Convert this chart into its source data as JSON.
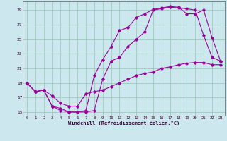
{
  "xlabel": "Windchill (Refroidissement éolien,°C)",
  "xlim": [
    -0.5,
    23.5
  ],
  "ylim": [
    14.5,
    30.2
  ],
  "yticks": [
    15,
    17,
    19,
    21,
    23,
    25,
    27,
    29
  ],
  "xticks": [
    0,
    1,
    2,
    3,
    4,
    5,
    6,
    7,
    8,
    9,
    10,
    11,
    12,
    13,
    14,
    15,
    16,
    17,
    18,
    19,
    20,
    21,
    22,
    23
  ],
  "bg_color": "#cce8ee",
  "grid_color": "#99ccbb",
  "line_color": "#990099",
  "line1_x": [
    0,
    1,
    2,
    3,
    4,
    5,
    6,
    7,
    8,
    9,
    10,
    11,
    12,
    13,
    14,
    15,
    16,
    17,
    18,
    19,
    20,
    21,
    22,
    23
  ],
  "line1_y": [
    19,
    17.8,
    18,
    15.8,
    15.2,
    15.0,
    15.0,
    15.2,
    20.0,
    22.2,
    24.0,
    26.2,
    26.6,
    28.0,
    28.5,
    29.1,
    29.3,
    29.5,
    29.4,
    28.5,
    28.5,
    29.0,
    25.2,
    22.0
  ],
  "line2_x": [
    0,
    1,
    2,
    3,
    4,
    5,
    6,
    7,
    8,
    9,
    10,
    11,
    12,
    13,
    14,
    15,
    16,
    17,
    18,
    19,
    20,
    21,
    22,
    23
  ],
  "line2_y": [
    19,
    17.8,
    18,
    15.8,
    15.5,
    15.0,
    15.0,
    15.0,
    15.2,
    19.5,
    22,
    22.5,
    24.0,
    25.0,
    26.0,
    29.0,
    29.2,
    29.4,
    29.3,
    29.2,
    29.0,
    25.5,
    22.5,
    22.0
  ],
  "line3_x": [
    0,
    1,
    2,
    3,
    4,
    5,
    6,
    7,
    8,
    9,
    10,
    11,
    12,
    13,
    14,
    15,
    16,
    17,
    18,
    19,
    20,
    21,
    22,
    23
  ],
  "line3_y": [
    19,
    17.8,
    18,
    17.2,
    16.2,
    15.8,
    15.8,
    17.5,
    17.8,
    18.0,
    18.5,
    19.0,
    19.5,
    20.0,
    20.3,
    20.5,
    21.0,
    21.2,
    21.5,
    21.7,
    21.8,
    21.8,
    21.5,
    21.5
  ]
}
